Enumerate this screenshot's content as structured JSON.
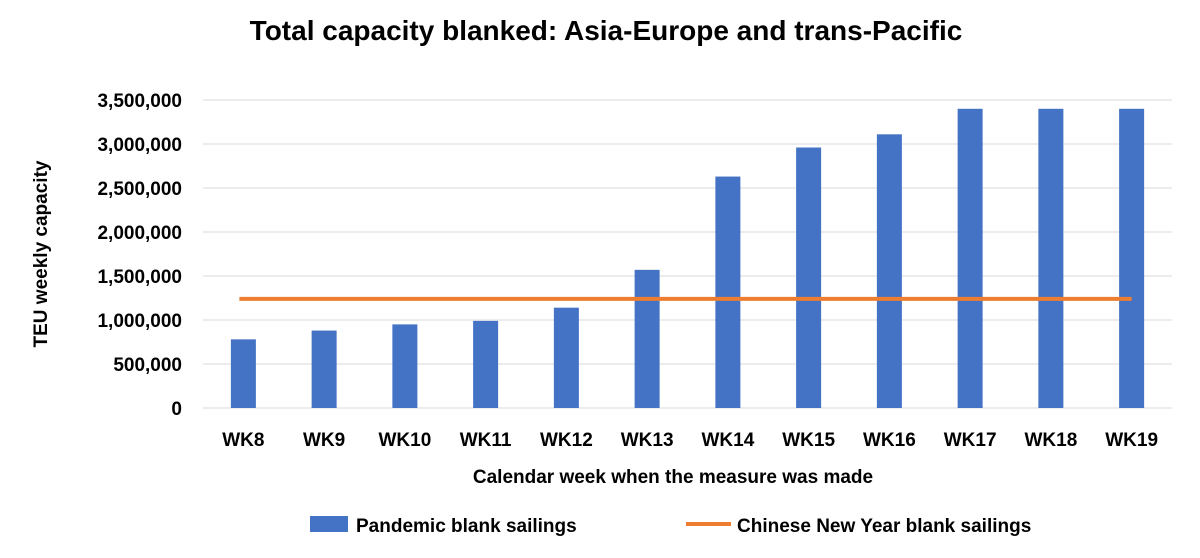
{
  "chart_data": {
    "type": "bar",
    "title": "Total capacity blanked: Asia-Europe and trans-Pacific",
    "xlabel": "Calendar week when the measure was made",
    "ylabel": "TEU weekly capacity",
    "categories": [
      "WK8",
      "WK9",
      "WK10",
      "WK11",
      "WK12",
      "WK13",
      "WK14",
      "WK15",
      "WK16",
      "WK17",
      "WK18",
      "WK19"
    ],
    "series": [
      {
        "name": "Pandemic blank sailings",
        "type": "bar",
        "color": "#4472C4",
        "values": [
          780000,
          880000,
          950000,
          990000,
          1140000,
          1570000,
          2630000,
          2960000,
          3110000,
          3400000,
          3400000,
          3400000
        ]
      },
      {
        "name": "Chinese New Year blank sailings",
        "type": "line",
        "color": "#ED7D31",
        "values": [
          1240000,
          1240000,
          1240000,
          1240000,
          1240000,
          1240000,
          1240000,
          1240000,
          1240000,
          1240000,
          1240000,
          1240000
        ]
      }
    ],
    "ylim": [
      0,
      3500000
    ],
    "yticks": [
      0,
      500000,
      1000000,
      1500000,
      2000000,
      2500000,
      3000000,
      3500000
    ],
    "ytick_labels": [
      "0",
      "500,000",
      "1,000,000",
      "1,500,000",
      "2,000,000",
      "2,500,000",
      "3,000,000",
      "3,500,000"
    ],
    "grid": true,
    "legend_position": "bottom"
  }
}
